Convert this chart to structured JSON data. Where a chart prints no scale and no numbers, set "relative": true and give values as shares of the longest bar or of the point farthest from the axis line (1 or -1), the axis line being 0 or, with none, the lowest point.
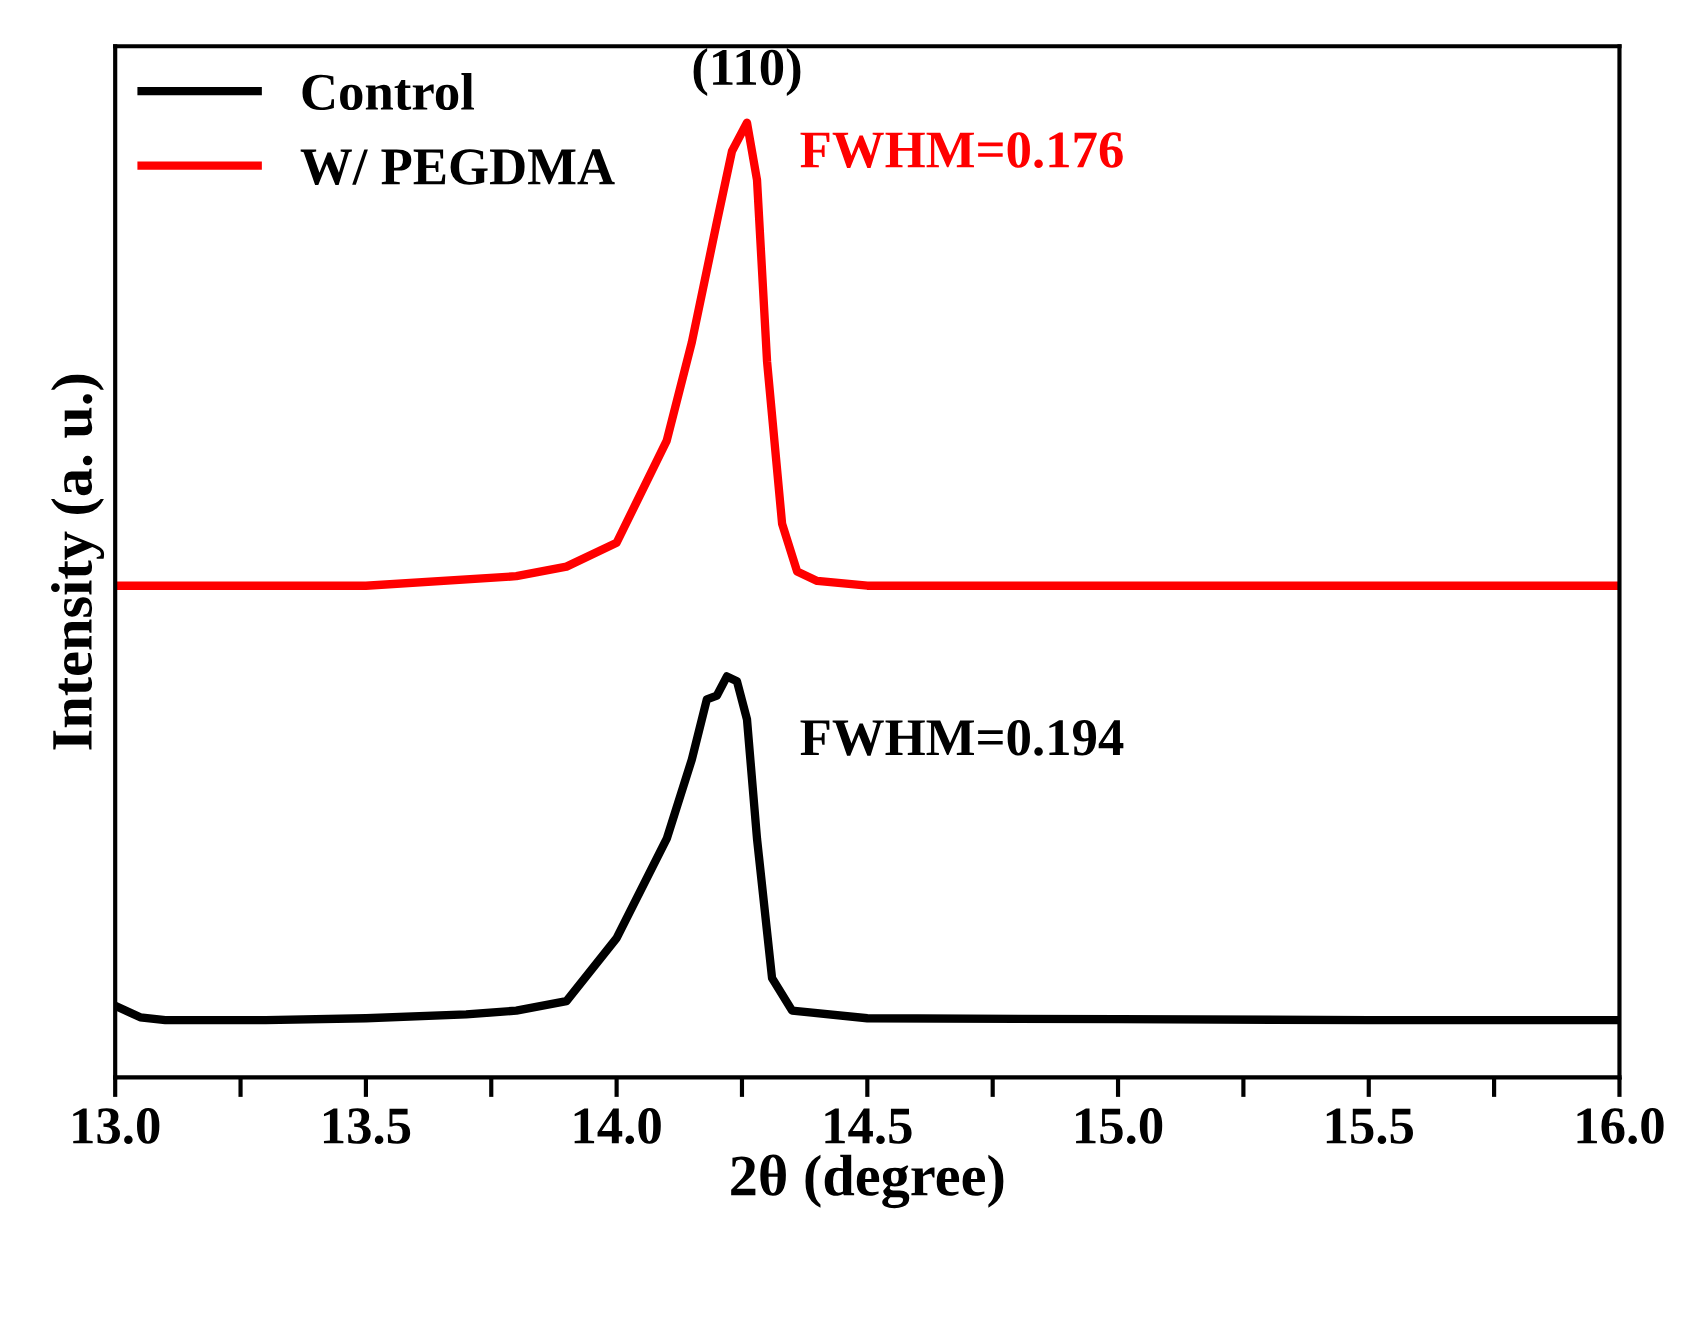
{
  "chart_data": {
    "type": "line",
    "relative": true,
    "xlabel": "2θ (degree)",
    "ylabel": "Intensity (a. u.)",
    "xlim": [
      13.0,
      16.0
    ],
    "xticks": [
      {
        "value": 13.0,
        "label": "13.0"
      },
      {
        "value": 13.25,
        "label": null
      },
      {
        "value": 13.5,
        "label": "13.5"
      },
      {
        "value": 13.75,
        "label": null
      },
      {
        "value": 14.0,
        "label": "14.0"
      },
      {
        "value": 14.25,
        "label": null
      },
      {
        "value": 14.5,
        "label": "14.5"
      },
      {
        "value": 14.75,
        "label": null
      },
      {
        "value": 15.0,
        "label": "15.0"
      },
      {
        "value": 15.25,
        "label": null
      },
      {
        "value": 15.5,
        "label": "15.5"
      },
      {
        "value": 15.75,
        "label": null
      },
      {
        "value": 16.0,
        "label": "16.0"
      }
    ],
    "tick_labels": "x",
    "grid": false,
    "legend": "top left",
    "marker": "none",
    "line_style": "solid",
    "series": [
      {
        "name": "Control",
        "color": "#000000",
        "x": [
          13.0,
          13.05,
          13.1,
          13.3,
          13.5,
          13.7,
          13.8,
          13.9,
          14.0,
          14.1,
          14.15,
          14.18,
          14.2,
          14.22,
          14.24,
          14.26,
          14.28,
          14.31,
          14.35,
          14.5,
          15.0,
          15.5,
          16.0
        ],
        "values": [
          0.075,
          0.063,
          0.06,
          0.06,
          0.062,
          0.066,
          0.07,
          0.08,
          0.146,
          0.25,
          0.333,
          0.396,
          0.4,
          0.42,
          0.415,
          0.375,
          0.25,
          0.104,
          0.07,
          0.062,
          0.061,
          0.06,
          0.06
        ]
      },
      {
        "name": "W/ PEGDMA",
        "color": "#ff0000",
        "x": [
          13.0,
          13.5,
          13.8,
          13.9,
          14.0,
          14.1,
          14.15,
          14.2,
          14.23,
          14.26,
          14.28,
          14.3,
          14.33,
          14.36,
          14.4,
          14.5,
          15.0,
          16.0
        ],
        "values": [
          0.515,
          0.515,
          0.525,
          0.535,
          0.56,
          0.667,
          0.77,
          0.896,
          0.97,
          1.0,
          0.94,
          0.75,
          0.58,
          0.53,
          0.52,
          0.515,
          0.515,
          0.515
        ]
      }
    ],
    "annotations": [
      "(110)",
      "FWHM=0.176",
      "FWHM=0.194"
    ]
  }
}
